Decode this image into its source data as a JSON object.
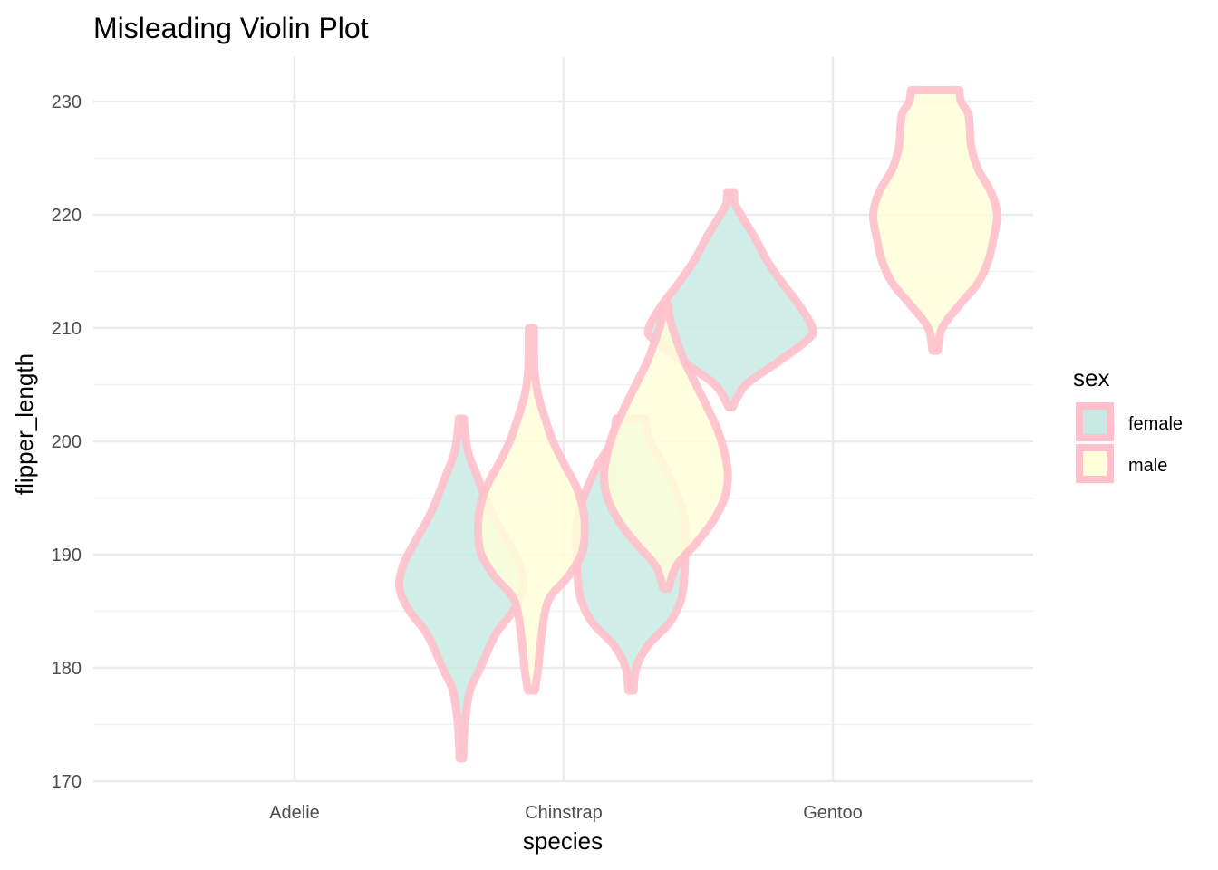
{
  "chart_data": {
    "type": "violin",
    "title": "Misleading Violin Plot",
    "xlabel": "species",
    "ylabel": "flipper_length",
    "categories": [
      "Adelie",
      "Chinstrap",
      "Gentoo"
    ],
    "ylim": [
      170,
      234
    ],
    "y_ticks": [
      170,
      180,
      190,
      200,
      210,
      220,
      230
    ],
    "grid": true,
    "legend": {
      "title": "sex",
      "position": "right",
      "entries": [
        {
          "label": "female",
          "fill": "#c6e9e3"
        },
        {
          "label": "male",
          "fill": "#ffffd9"
        }
      ]
    },
    "outline_color": "#ffc0cb",
    "series": [
      {
        "name": "female",
        "fill": "#c6e9e3",
        "violins": [
          {
            "category": "Adelie",
            "x": 0.62,
            "ymin": 172,
            "ymax": 202,
            "profile": [
              [
                172,
                0.02
              ],
              [
                175,
                0.04
              ],
              [
                178,
                0.1
              ],
              [
                180,
                0.22
              ],
              [
                183,
                0.4
              ],
              [
                185,
                0.6
              ],
              [
                187,
                0.72
              ],
              [
                189,
                0.68
              ],
              [
                191,
                0.55
              ],
              [
                193,
                0.4
              ],
              [
                195,
                0.28
              ],
              [
                197,
                0.18
              ],
              [
                199,
                0.08
              ],
              [
                201,
                0.04
              ],
              [
                202,
                0.03
              ]
            ]
          },
          {
            "category": "Chinstrap",
            "x": 1.62,
            "ymin": 203,
            "ymax": 222,
            "profile": [
              [
                203,
                0.02
              ],
              [
                205,
                0.18
              ],
              [
                207,
                0.55
              ],
              [
                209,
                0.9
              ],
              [
                210,
                0.95
              ],
              [
                212,
                0.8
              ],
              [
                214,
                0.6
              ],
              [
                216,
                0.42
              ],
              [
                218,
                0.28
              ],
              [
                220,
                0.12
              ],
              [
                221,
                0.05
              ],
              [
                222,
                0.04
              ]
            ]
          },
          {
            "category": "Adelie",
            "x": 1.25,
            "ymin": 178,
            "ymax": 202,
            "profile": [
              [
                178,
                0.03
              ],
              [
                180,
                0.06
              ],
              [
                182,
                0.2
              ],
              [
                184,
                0.45
              ],
              [
                186,
                0.58
              ],
              [
                188,
                0.62
              ],
              [
                190,
                0.63
              ],
              [
                192,
                0.64
              ],
              [
                194,
                0.6
              ],
              [
                196,
                0.5
              ],
              [
                198,
                0.38
              ],
              [
                200,
                0.22
              ],
              [
                202,
                0.17
              ]
            ]
          }
        ]
      },
      {
        "name": "male",
        "fill": "#ffffd9",
        "violins": [
          {
            "category": "Adelie",
            "x": 0.88,
            "ymin": 178,
            "ymax": 210,
            "profile": [
              [
                178,
                0.04
              ],
              [
                180,
                0.08
              ],
              [
                183,
                0.12
              ],
              [
                186,
                0.2
              ],
              [
                188,
                0.42
              ],
              [
                190,
                0.58
              ],
              [
                192,
                0.62
              ],
              [
                194,
                0.6
              ],
              [
                196,
                0.52
              ],
              [
                198,
                0.38
              ],
              [
                200,
                0.25
              ],
              [
                202,
                0.16
              ],
              [
                204,
                0.08
              ],
              [
                206,
                0.04
              ],
              [
                208,
                0.03
              ],
              [
                210,
                0.03
              ]
            ]
          },
          {
            "category": "Chinstrap",
            "x": 1.38,
            "ymin": 187,
            "ymax": 212,
            "profile": [
              [
                187,
                0.03
              ],
              [
                189,
                0.12
              ],
              [
                191,
                0.35
              ],
              [
                193,
                0.55
              ],
              [
                195,
                0.68
              ],
              [
                197,
                0.72
              ],
              [
                199,
                0.68
              ],
              [
                201,
                0.6
              ],
              [
                203,
                0.48
              ],
              [
                205,
                0.35
              ],
              [
                207,
                0.22
              ],
              [
                209,
                0.12
              ],
              [
                211,
                0.04
              ],
              [
                212,
                0.03
              ]
            ]
          },
          {
            "category": "Gentoo",
            "x": 2.38,
            "ymin": 208,
            "ymax": 231,
            "profile": [
              [
                208,
                0.03
              ],
              [
                210,
                0.08
              ],
              [
                212,
                0.28
              ],
              [
                214,
                0.5
              ],
              [
                216,
                0.62
              ],
              [
                218,
                0.68
              ],
              [
                220,
                0.72
              ],
              [
                222,
                0.65
              ],
              [
                224,
                0.5
              ],
              [
                226,
                0.42
              ],
              [
                228,
                0.4
              ],
              [
                229,
                0.38
              ],
              [
                230,
                0.3
              ],
              [
                231,
                0.28
              ]
            ]
          }
        ]
      }
    ]
  }
}
